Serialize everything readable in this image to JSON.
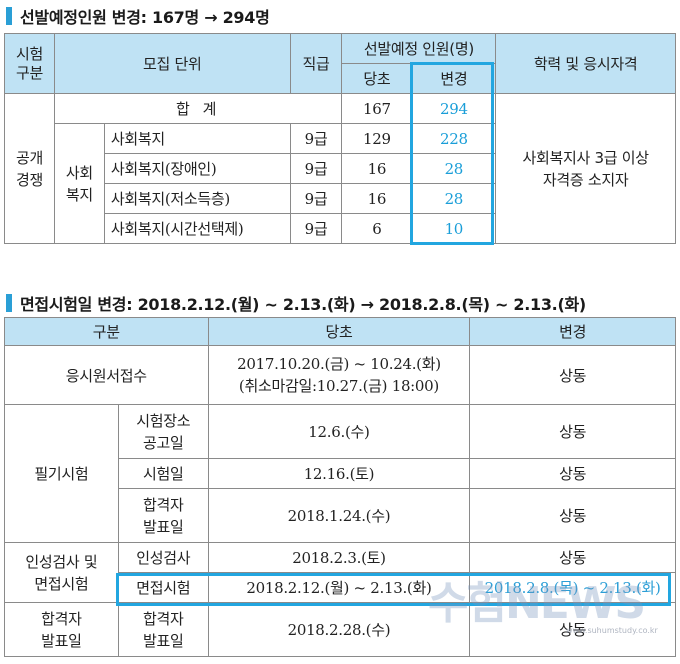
{
  "section1": {
    "title": "선발예정인원 변경: 167명 → 294명",
    "header": {
      "category": "시험\n구분",
      "unit": "모집 단위",
      "grade": "직급",
      "planned": "선발예정 인원(명)",
      "original": "당초",
      "changed": "변경",
      "qualification": "학력 및 응시자격"
    },
    "total_label": "합 계",
    "total_original": "167",
    "total_changed": "294",
    "group1": "공개\n경쟁",
    "group2": "사회\n복지",
    "rows": [
      {
        "unit": "사회복지",
        "grade": "9급",
        "original": "129",
        "changed": "228"
      },
      {
        "unit": "사회복지(장애인)",
        "grade": "9급",
        "original": "16",
        "changed": "28"
      },
      {
        "unit": "사회복지(저소득층)",
        "grade": "9급",
        "original": "16",
        "changed": "28"
      },
      {
        "unit": "사회복지(시간선택제)",
        "grade": "9급",
        "original": "6",
        "changed": "10"
      }
    ],
    "qualification_text": "사회복지사 3급 이상\n자격증 소지자"
  },
  "section2": {
    "title": "면접시험일 변경: 2018.2.12.(월) ~ 2.13.(화) → 2018.2.8.(목) ~ 2.13.(화)",
    "header": {
      "category": "구분",
      "original": "당초",
      "changed": "변경"
    },
    "application": {
      "label": "응시원서접수",
      "original_line1": "2017.10.20.(금) ~ 10.24.(화)",
      "original_line2": "(취소마감일:10.27.(금) 18:00)",
      "changed": "상동"
    },
    "written": {
      "label": "필기시험",
      "rows": [
        {
          "sub": "시험장소\n공고일",
          "original": "12.6.(수)",
          "changed": "상동"
        },
        {
          "sub": "시험일",
          "original": "12.16.(토)",
          "changed": "상동"
        },
        {
          "sub": "합격자\n발표일",
          "original": "2018.1.24.(수)",
          "changed": "상동"
        }
      ]
    },
    "interview": {
      "label": "인성검사 및\n면접시험",
      "rows": [
        {
          "sub": "인성검사",
          "original": "2018.2.3.(토)",
          "changed": "상동"
        },
        {
          "sub": "면접시험",
          "original": "2018.2.12.(월) ~ 2.13.(화)",
          "changed": "2018.2.8.(목) ~ 2.13.(화)"
        }
      ]
    },
    "final": {
      "label": "합격자\n발표일",
      "sub": "합격자\n발표일",
      "original": "2018.2.28.(수)",
      "changed": "상동"
    }
  },
  "watermark": {
    "text": "수험NEWS",
    "url": "www.suhumstudy.co.kr"
  },
  "colors": {
    "header_bg": "#bfe2f4",
    "accent": "#22a6e0",
    "changed_text": "#1a9ed8"
  }
}
